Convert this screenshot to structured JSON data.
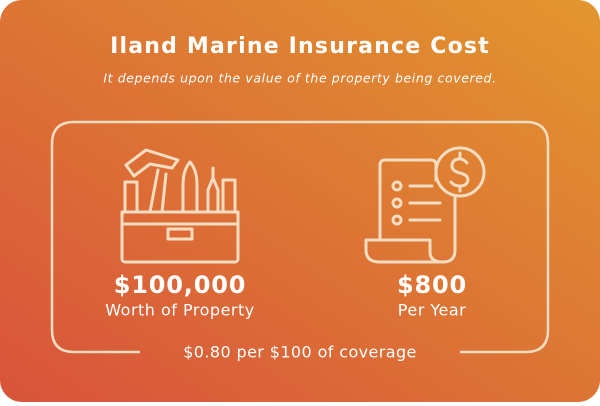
{
  "header": {
    "title": "Iland Marine Insurance Cost",
    "subtitle": "It depends upon the value of the property being covered."
  },
  "items": [
    {
      "value": "$100,000",
      "label": "Worth of Property"
    },
    {
      "value": "$800",
      "label": "Per Year"
    }
  ],
  "footer": "$0.80 per $100 of coverage"
}
